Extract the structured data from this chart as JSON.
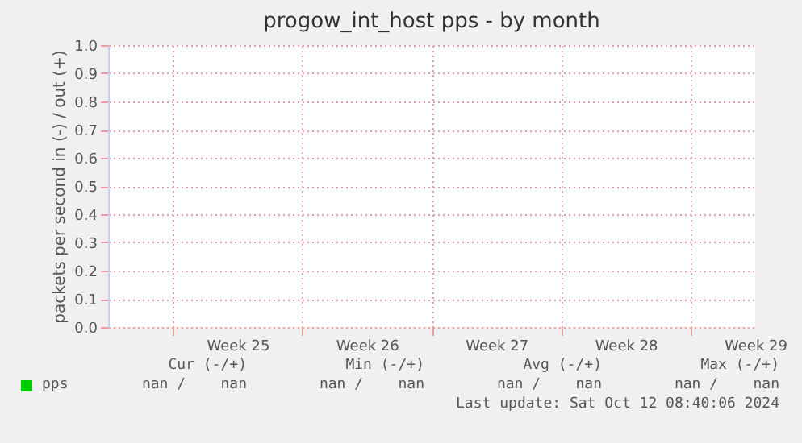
{
  "chart_data": {
    "type": "line",
    "title": "progow_int_host pps - by month",
    "ylabel": "packets per second in (-) / out (+)",
    "categories": [
      "Week 25",
      "Week 26",
      "Week 27",
      "Week 28",
      "Week 29"
    ],
    "series": [
      {
        "name": "pps",
        "color": "#00cc00",
        "values": [
          null,
          null,
          null,
          null,
          null
        ]
      }
    ],
    "ylim": [
      0,
      1
    ],
    "yticks": [
      {
        "value": 0,
        "label": "0.0"
      },
      0.1,
      0.2,
      0.3,
      0.4,
      0.5,
      0.6,
      0.7,
      0.8,
      0.9,
      {
        "value": 1,
        "label": "1.0"
      }
    ],
    "grid": true,
    "legend": "bottom",
    "annotations": [
      "Cur (-/+)",
      "Min (-/+)",
      "Avg (-/+)",
      "Max (-/+)",
      "nan /    nan",
      "nan /    nan",
      "nan /    nan",
      "nan /    nan",
      "Last update: Sat Oct 12 08:40:06 2024"
    ]
  }
}
